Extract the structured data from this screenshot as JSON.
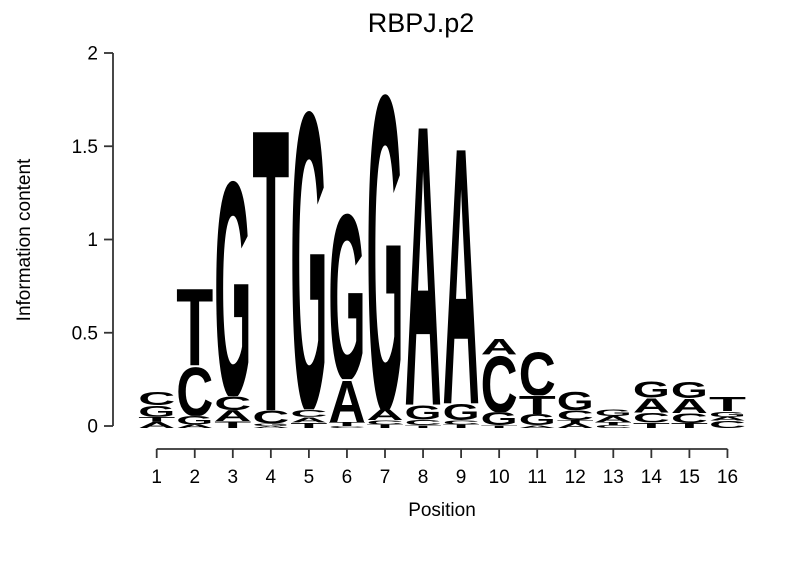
{
  "figure": {
    "title": "RBPJ.p2",
    "x_axis_label": "Position",
    "y_axis_label": "Information content"
  },
  "chart_data": {
    "type": "sequence_logo",
    "title": "RBPJ.p2",
    "xlabel": "Position",
    "ylabel": "Information content",
    "ylim": [
      0,
      2
    ],
    "yticks": [
      0,
      0.5,
      1,
      1.5,
      2
    ],
    "ytick_labels": [
      "0",
      "0.5",
      "1",
      "1.5",
      "2"
    ],
    "positions": [
      1,
      2,
      3,
      4,
      5,
      6,
      7,
      8,
      9,
      10,
      11,
      12,
      13,
      14,
      15,
      16
    ],
    "base_colors": {
      "A": "#00CC00",
      "C": "#0000CC",
      "G": "#FFA505",
      "T": "#EE0000"
    },
    "axis_color": "#333333",
    "stack_order": "bottom-to-top",
    "stacks": [
      {
        "position": 1,
        "letters": [
          {
            "base": "A",
            "ic": 0.033
          },
          {
            "base": "T",
            "ic": 0.027
          },
          {
            "base": "G",
            "ic": 0.062
          },
          {
            "base": "C",
            "ic": 0.073
          }
        ]
      },
      {
        "position": 2,
        "letters": [
          {
            "base": "A",
            "ic": 0.02
          },
          {
            "base": "G",
            "ic": 0.045
          },
          {
            "base": "C",
            "ic": 0.27
          },
          {
            "base": "T",
            "ic": 0.425
          }
        ]
      },
      {
        "position": 3,
        "letters": [
          {
            "base": "T",
            "ic": 0.037
          },
          {
            "base": "A",
            "ic": 0.059
          },
          {
            "base": "C",
            "ic": 0.075
          },
          {
            "base": "G",
            "ic": 1.19
          }
        ]
      },
      {
        "position": 4,
        "letters": [
          {
            "base": "A",
            "ic": 0.01
          },
          {
            "base": "G",
            "ic": 0.015
          },
          {
            "base": "C",
            "ic": 0.07
          },
          {
            "base": "T",
            "ic": 1.56
          }
        ]
      },
      {
        "position": 5,
        "letters": [
          {
            "base": "T",
            "ic": 0.03
          },
          {
            "base": "A",
            "ic": 0.03
          },
          {
            "base": "C",
            "ic": 0.04
          },
          {
            "base": "G",
            "ic": 1.65
          }
        ]
      },
      {
        "position": 6,
        "letters": [
          {
            "base": "C",
            "ic": 0.01
          },
          {
            "base": "T",
            "ic": 0.022
          },
          {
            "base": "A",
            "ic": 0.23
          },
          {
            "base": "G",
            "ic": 0.915
          }
        ]
      },
      {
        "position": 7,
        "letters": [
          {
            "base": "T",
            "ic": 0.02
          },
          {
            "base": "C",
            "ic": 0.022
          },
          {
            "base": "A",
            "ic": 0.06
          },
          {
            "base": "G",
            "ic": 1.74
          }
        ]
      },
      {
        "position": 8,
        "letters": [
          {
            "base": "T",
            "ic": 0.015
          },
          {
            "base": "C",
            "ic": 0.03
          },
          {
            "base": "G",
            "ic": 0.08
          },
          {
            "base": "A",
            "ic": 1.55
          }
        ]
      },
      {
        "position": 9,
        "letters": [
          {
            "base": "T",
            "ic": 0.02
          },
          {
            "base": "C",
            "ic": 0.022
          },
          {
            "base": "G",
            "ic": 0.09
          },
          {
            "base": "A",
            "ic": 1.42
          }
        ]
      },
      {
        "position": 10,
        "letters": [
          {
            "base": "T",
            "ic": 0.015
          },
          {
            "base": "G",
            "ic": 0.07
          },
          {
            "base": "C",
            "ic": 0.31
          },
          {
            "base": "A",
            "ic": 0.085
          }
        ]
      },
      {
        "position": 11,
        "letters": [
          {
            "base": "A",
            "ic": 0.015
          },
          {
            "base": "G",
            "ic": 0.06
          },
          {
            "base": "T",
            "ic": 0.1
          },
          {
            "base": "C",
            "ic": 0.24
          }
        ]
      },
      {
        "position": 12,
        "letters": [
          {
            "base": "A",
            "ic": 0.027
          },
          {
            "base": "T",
            "ic": 0.016
          },
          {
            "base": "C",
            "ic": 0.053
          },
          {
            "base": "G",
            "ic": 0.1
          }
        ]
      },
      {
        "position": 13,
        "letters": [
          {
            "base": "C",
            "ic": 0.016
          },
          {
            "base": "T",
            "ic": 0.016
          },
          {
            "base": "A",
            "ic": 0.032
          },
          {
            "base": "G",
            "ic": 0.037
          }
        ]
      },
      {
        "position": 14,
        "letters": [
          {
            "base": "T",
            "ic": 0.03
          },
          {
            "base": "C",
            "ic": 0.053
          },
          {
            "base": "A",
            "ic": 0.08
          },
          {
            "base": "G",
            "ic": 0.09
          }
        ]
      },
      {
        "position": 15,
        "letters": [
          {
            "base": "T",
            "ic": 0.027
          },
          {
            "base": "C",
            "ic": 0.053
          },
          {
            "base": "A",
            "ic": 0.08
          },
          {
            "base": "G",
            "ic": 0.09
          }
        ]
      },
      {
        "position": 16,
        "letters": [
          {
            "base": "C",
            "ic": 0.04
          },
          {
            "base": "A",
            "ic": 0.02
          },
          {
            "base": "G",
            "ic": 0.03
          },
          {
            "base": "T",
            "ic": 0.08
          }
        ]
      }
    ]
  }
}
